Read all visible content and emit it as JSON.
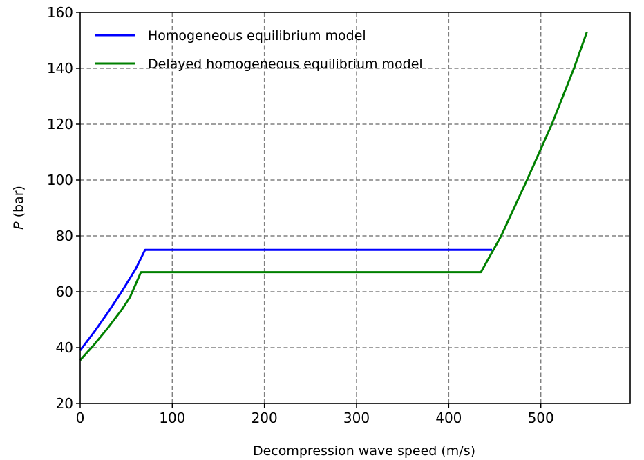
{
  "chart_data": {
    "type": "line",
    "title": "",
    "xlabel": "Decompression wave speed (m/s)",
    "ylabel_italic": "P",
    "ylabel_unit": " (bar)",
    "xlim": [
      0,
      597
    ],
    "ylim": [
      20,
      160
    ],
    "xticks": [
      0,
      100,
      200,
      300,
      400,
      500
    ],
    "yticks": [
      20,
      40,
      60,
      80,
      100,
      120,
      140,
      160
    ],
    "grid": true,
    "legend_position": "top-left",
    "series": [
      {
        "name": "Homogeneous equilibrium model",
        "color": "#0000ff",
        "x": [
          0,
          15,
          30,
          45,
          60,
          70.5,
          447
        ],
        "y": [
          39,
          45.5,
          52.5,
          60,
          68,
          75,
          75
        ]
      },
      {
        "name": "Delayed homogeneous equilibrium model",
        "color": "#008000",
        "x": [
          0,
          15,
          30,
          45,
          54,
          66,
          435,
          457,
          485,
          512,
          536,
          550
        ],
        "y": [
          35.5,
          41,
          47,
          53.5,
          58,
          67,
          67,
          80,
          100,
          120,
          140,
          153
        ]
      }
    ]
  }
}
